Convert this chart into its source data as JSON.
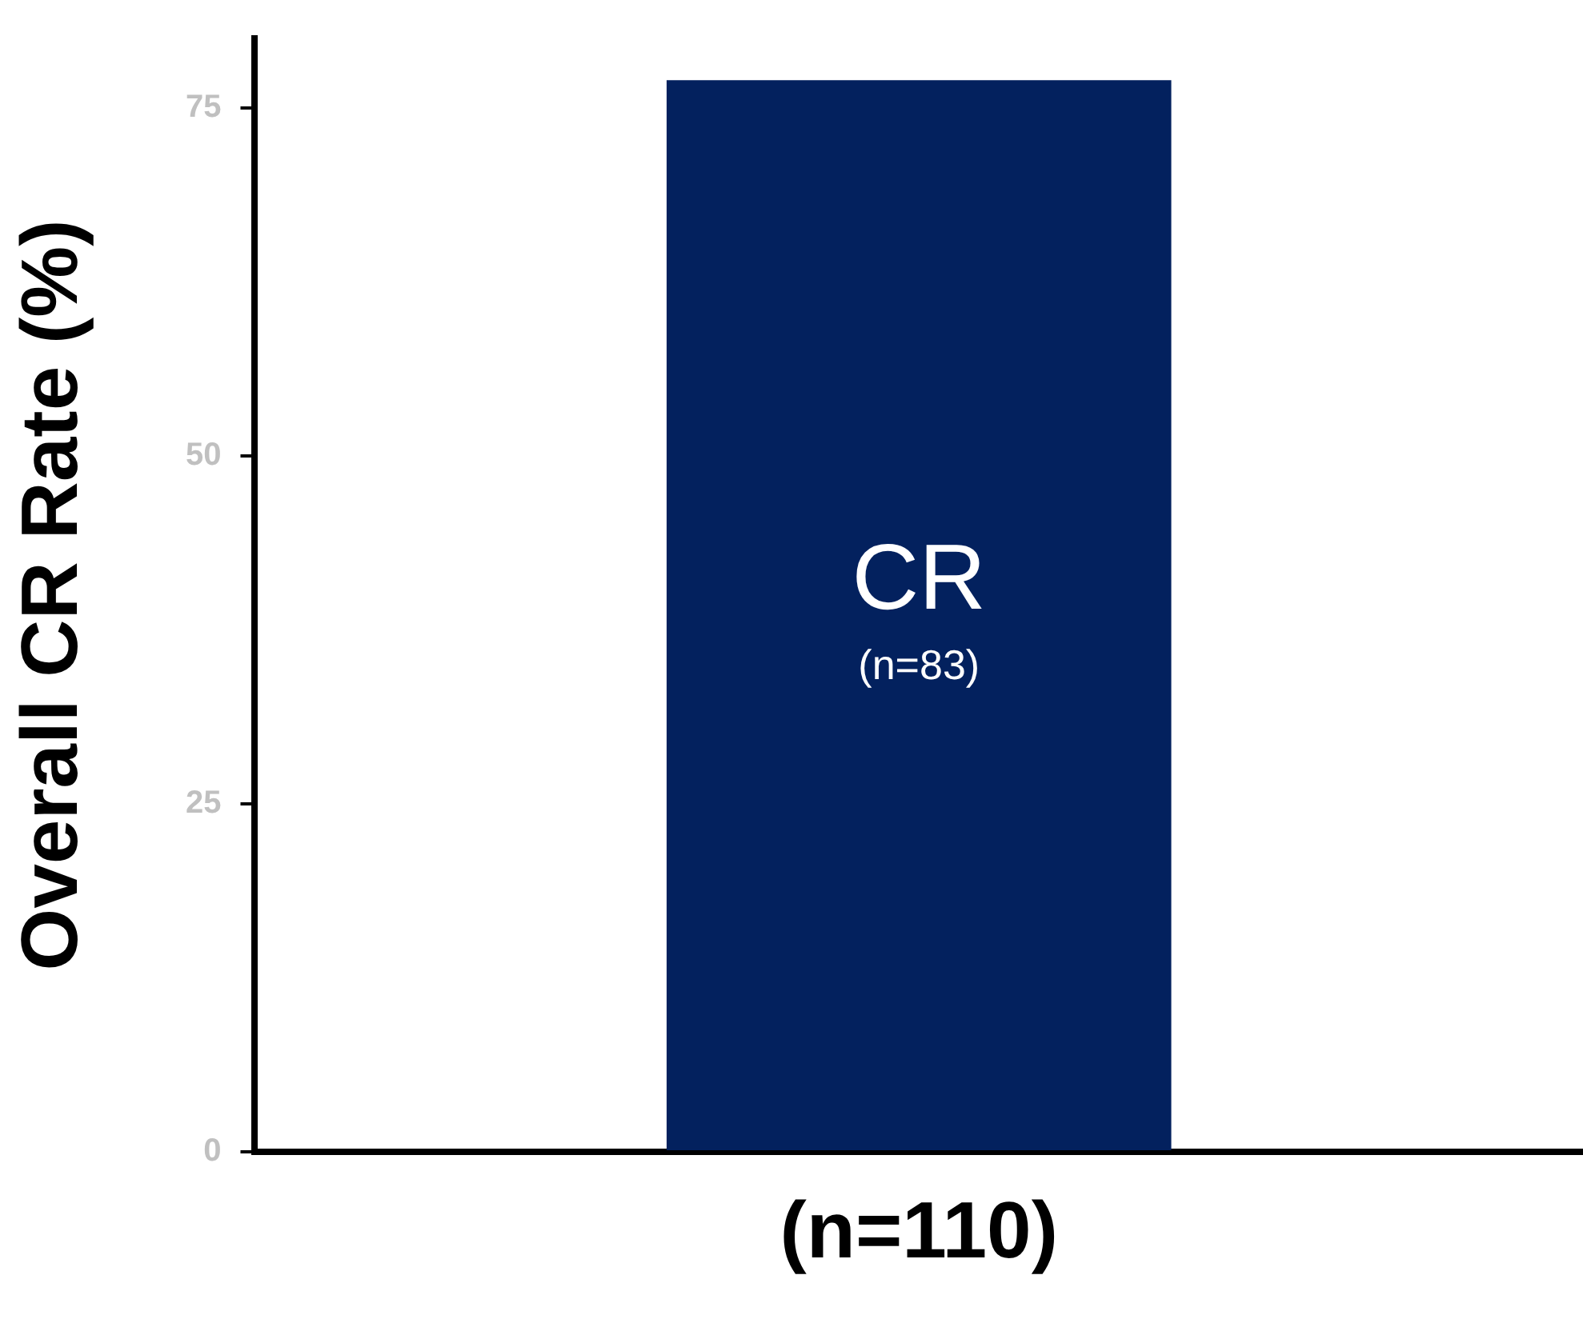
{
  "chart_data": {
    "type": "bar",
    "ylabel": "Overall CR Rate (%)",
    "categories": [
      "(n=110)"
    ],
    "values": [
      77
    ],
    "color": "#03215e",
    "ylim": [
      0,
      80
    ],
    "yticks": [
      0,
      25,
      50,
      75
    ],
    "grid": false,
    "legend": false,
    "annotations": [
      "CR",
      "(n=83)"
    ]
  }
}
